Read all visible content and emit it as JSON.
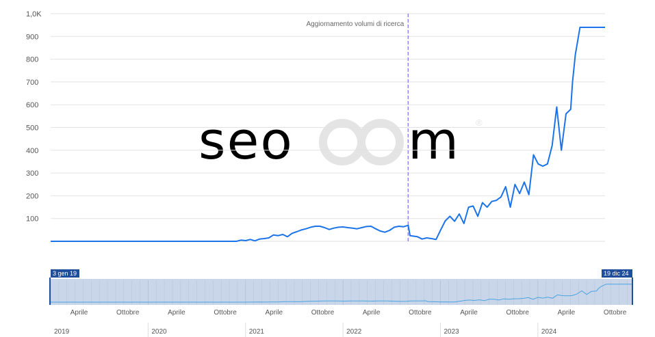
{
  "watermark": {
    "text_left": "seo",
    "text_right": "m",
    "registered": "®",
    "color_left": "#d6ecf3",
    "color_right": "#e8e8e8"
  },
  "annotation": {
    "label": "Aggiornamento volumi di ricerca",
    "x": 2022.85
  },
  "chart_data": {
    "type": "line",
    "ylim": [
      0,
      1000
    ],
    "yticks": [
      100,
      200,
      300,
      400,
      500,
      600,
      700,
      800,
      900,
      1000
    ],
    "ytick_labels": [
      "100",
      "200",
      "300",
      "400",
      "500",
      "600",
      "700",
      "800",
      "900",
      "1,0K"
    ],
    "xlim": [
      2019.0,
      2024.97
    ],
    "line_color": "#1a73e8",
    "series": [
      {
        "x": [
          2019.0,
          2021.0,
          2021.05,
          2021.1,
          2021.15,
          2021.2,
          2021.25,
          2021.3,
          2021.35,
          2021.4,
          2021.45,
          2021.5,
          2021.55,
          2021.6,
          2021.65,
          2021.7,
          2021.75,
          2021.8,
          2021.85,
          2021.9,
          2021.95,
          2022.0,
          2022.05,
          2022.1,
          2022.15,
          2022.2,
          2022.25,
          2022.3,
          2022.35,
          2022.4,
          2022.45,
          2022.5,
          2022.55,
          2022.6,
          2022.65,
          2022.7,
          2022.75,
          2022.8,
          2022.85,
          2022.87,
          2022.95,
          2023.0,
          2023.05,
          2023.1,
          2023.15,
          2023.2,
          2023.25,
          2023.3,
          2023.35,
          2023.4,
          2023.45,
          2023.5,
          2023.55,
          2023.6,
          2023.65,
          2023.7,
          2023.75,
          2023.8,
          2023.85,
          2023.9,
          2023.95,
          2024.0,
          2024.05,
          2024.1,
          2024.15,
          2024.2,
          2024.25,
          2024.3,
          2024.35,
          2024.4,
          2024.45,
          2024.5,
          2024.55,
          2024.6,
          2024.62,
          2024.65,
          2024.7,
          2024.75,
          2024.78,
          2024.8,
          2024.82,
          2024.85,
          2024.88,
          2024.9,
          2024.93,
          2024.97
        ],
        "y": [
          0,
          0,
          5,
          3,
          8,
          2,
          10,
          12,
          15,
          28,
          25,
          30,
          20,
          35,
          42,
          50,
          55,
          62,
          66,
          66,
          60,
          52,
          58,
          62,
          63,
          60,
          58,
          55,
          60,
          65,
          66,
          55,
          45,
          40,
          48,
          62,
          66,
          64,
          70,
          25,
          20,
          10,
          15,
          12,
          8,
          50,
          90,
          110,
          88,
          120,
          78,
          150,
          155,
          110,
          170,
          150,
          175,
          180,
          195,
          240,
          150,
          250,
          210,
          260,
          205,
          380,
          340,
          330,
          340,
          420,
          590,
          400,
          560,
          580,
          700,
          820,
          940,
          940,
          940,
          940,
          940,
          940,
          940,
          940,
          940,
          940
        ]
      }
    ]
  },
  "navigator": {
    "start_label": "3 gen 19",
    "end_label": "19 dic 24",
    "month_ticks": [
      "Aprile",
      "Ottobre",
      "Aprile",
      "Ottobre",
      "Aprile",
      "Ottobre",
      "Aprile",
      "Ottobre",
      "Aprile",
      "Ottobre",
      "Aprile",
      "Ottobre"
    ],
    "years": [
      "2019",
      "2020",
      "2021",
      "2022",
      "2023",
      "2024"
    ],
    "handle_color": "#1f4e9c",
    "fill_color": "#c9d6ea"
  }
}
